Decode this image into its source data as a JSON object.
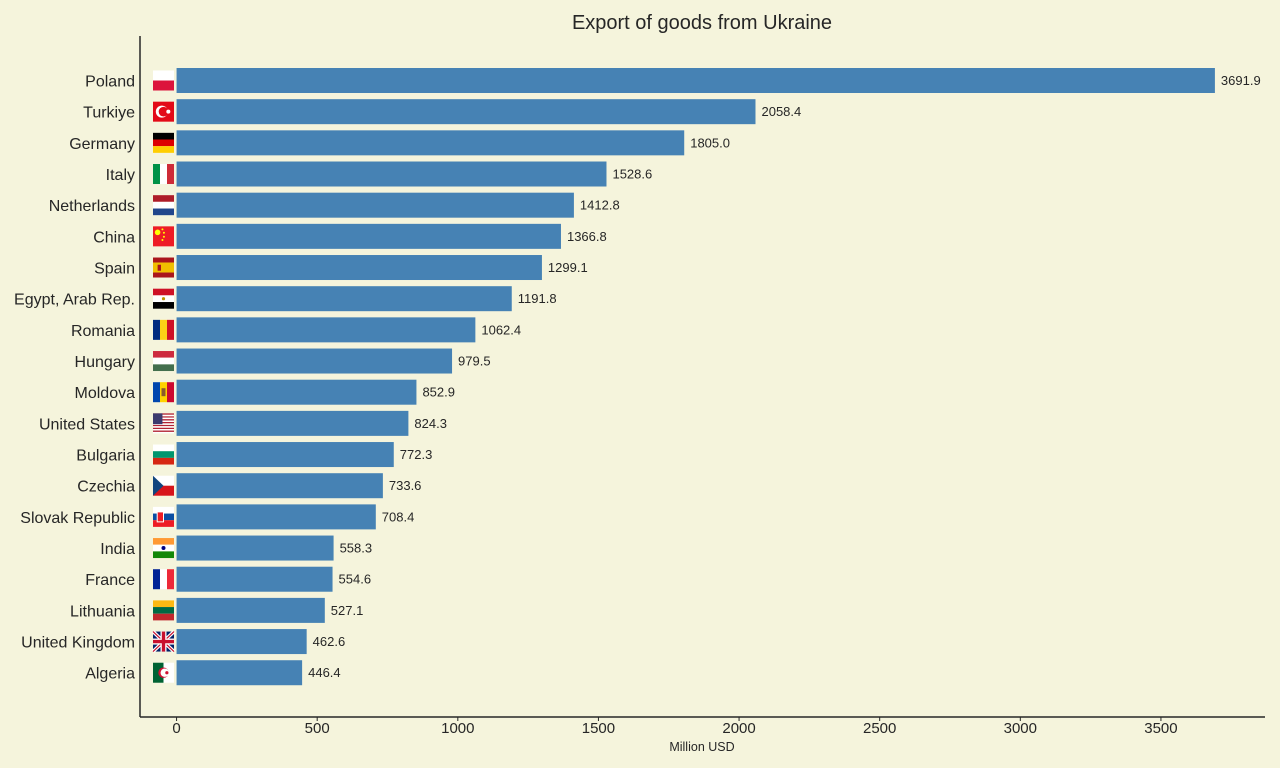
{
  "chart_data": {
    "type": "bar",
    "orientation": "horizontal",
    "title": "Export of goods from Ukraine",
    "xlabel": "Million USD",
    "ylabel": "",
    "xlim": [
      -130,
      3870
    ],
    "xticks": [
      0,
      500,
      1000,
      1500,
      2000,
      2500,
      3000,
      3500
    ],
    "categories": [
      "Poland",
      "Turkiye",
      "Germany",
      "Italy",
      "Netherlands",
      "China",
      "Spain",
      "Egypt, Arab Rep.",
      "Romania",
      "Hungary",
      "Moldova",
      "United States",
      "Bulgaria",
      "Czechia",
      "Slovak Republic",
      "India",
      "France",
      "Lithuania",
      "United Kingdom",
      "Algeria"
    ],
    "values": [
      3691.9,
      2058.4,
      1805.0,
      1528.6,
      1412.8,
      1366.8,
      1299.1,
      1191.8,
      1062.4,
      979.5,
      852.9,
      824.3,
      772.3,
      733.6,
      708.4,
      558.3,
      554.6,
      527.1,
      462.6,
      446.4
    ],
    "value_labels": [
      "3691.9",
      "2058.4",
      "1805.0",
      "1528.6",
      "1412.8",
      "1366.8",
      "1299.1",
      "1191.8",
      "1062.4",
      "979.5",
      "852.9",
      "824.3",
      "772.3",
      "733.6",
      "708.4",
      "558.3",
      "554.6",
      "527.1",
      "462.6",
      "446.4"
    ],
    "flags": [
      "poland-flag-icon",
      "turkiye-flag-icon",
      "germany-flag-icon",
      "italy-flag-icon",
      "netherlands-flag-icon",
      "china-flag-icon",
      "spain-flag-icon",
      "egypt-flag-icon",
      "romania-flag-icon",
      "hungary-flag-icon",
      "moldova-flag-icon",
      "united-states-flag-icon",
      "bulgaria-flag-icon",
      "czechia-flag-icon",
      "slovak-republic-flag-icon",
      "india-flag-icon",
      "france-flag-icon",
      "lithuania-flag-icon",
      "united-kingdom-flag-icon",
      "algeria-flag-icon"
    ],
    "bar_color": "#4682b4",
    "background": "#f5f4dc",
    "grid": false,
    "legend": "none"
  }
}
